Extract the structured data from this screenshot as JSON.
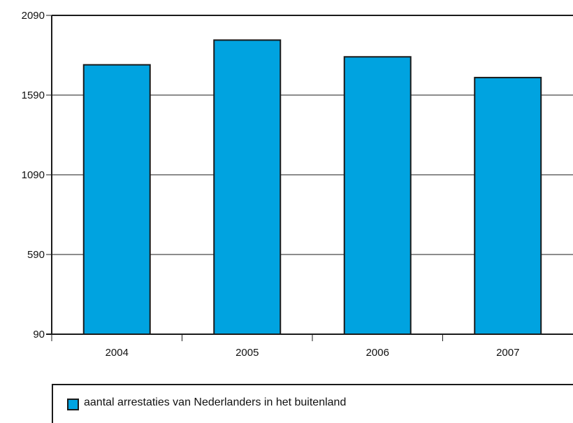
{
  "chart_data": {
    "type": "bar",
    "categories": [
      "2004",
      "2005",
      "2006",
      "2007"
    ],
    "series": [
      {
        "name": "aantal arrestaties van Nederlanders in het buitenland",
        "values": [
          1780,
          1935,
          1830,
          1700
        ]
      }
    ],
    "ylim": [
      90,
      2090
    ],
    "yticks": [
      "90",
      "590",
      "1090",
      "1590",
      "2090"
    ],
    "grid": true,
    "legend_placement": "bottom",
    "colors": {
      "bar": "#00a3e0",
      "bar_outline": "#1a1a1a",
      "gridline": "#1a1a1a"
    }
  }
}
